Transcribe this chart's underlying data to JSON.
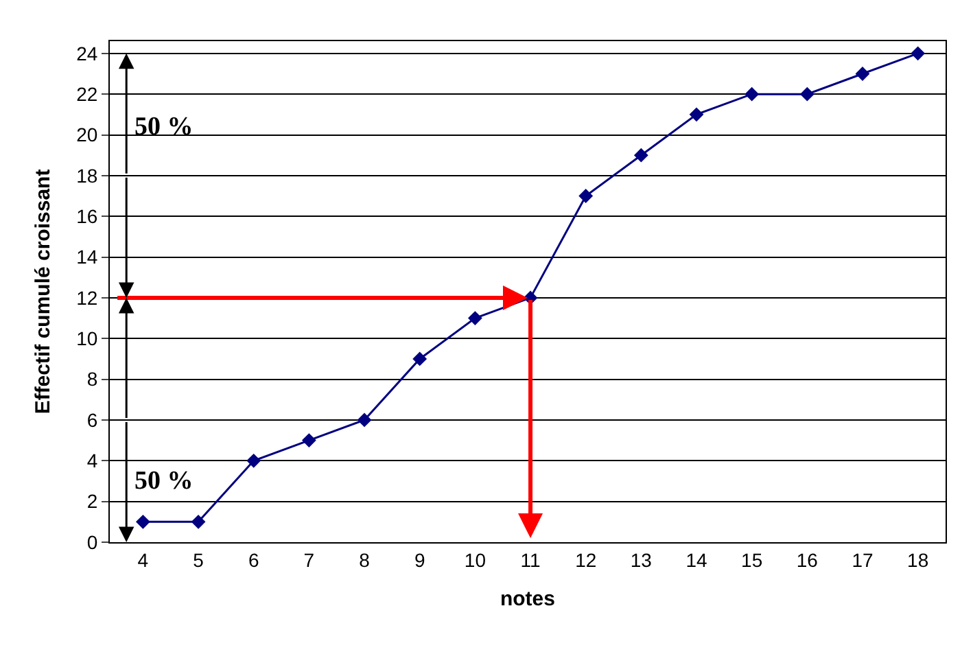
{
  "chart_data": {
    "type": "line",
    "xlabel": "notes",
    "ylabel": "Effectif cumulé croissant",
    "categories": [
      "4",
      "5",
      "6",
      "7",
      "8",
      "9",
      "10",
      "11",
      "12",
      "13",
      "14",
      "15",
      "16",
      "17",
      "18"
    ],
    "series": [
      {
        "color": "#000080",
        "values": [
          1,
          1,
          4,
          5,
          6,
          9,
          11,
          12,
          17,
          19,
          21,
          22,
          22,
          23,
          24
        ]
      }
    ],
    "ylim": [
      0,
      24.6
    ],
    "yticks": [
      0,
      2,
      4,
      6,
      8,
      10,
      12,
      14,
      16,
      18,
      20,
      22,
      24
    ],
    "grid": "y",
    "legend": false,
    "marker": "diamond",
    "line_style": "solid",
    "annotations": [
      "50 %",
      "50 %"
    ]
  }
}
